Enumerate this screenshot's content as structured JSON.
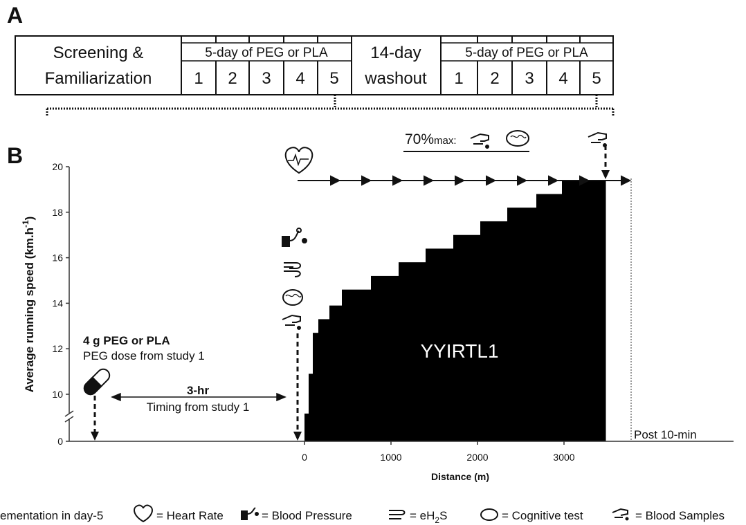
{
  "panel_a": {
    "label": "A",
    "screening": [
      "Screening &",
      "Familiarization"
    ],
    "block1": {
      "title": "5-day of PEG or PLA",
      "days": [
        "1",
        "2",
        "3",
        "4",
        "5"
      ]
    },
    "washout": [
      "14-day",
      "washout"
    ],
    "block2": {
      "title": "5-day of PEG or PLA",
      "days": [
        "1",
        "2",
        "3",
        "4",
        "5"
      ]
    }
  },
  "panel_b": {
    "label": "B",
    "y_axis_title": [
      "Average running speed (km.h",
      "-1",
      ")"
    ],
    "x_axis_title": "Distance (m)",
    "ylim": [
      0,
      20
    ],
    "yticks": [
      0,
      10,
      12,
      14,
      16,
      18,
      20
    ],
    "xlim": [
      -2720,
      4960
    ],
    "xticks": [
      0,
      1000,
      2000,
      3000
    ],
    "steps": {
      "edges": [
        0,
        48,
        96,
        160,
        288,
        432,
        768,
        1088,
        1400,
        1720,
        2032,
        2344,
        2680,
        2976,
        3480
      ],
      "speeds": [
        5.9,
        10.9,
        12.7,
        13.3,
        13.9,
        14.6,
        15.2,
        15.8,
        16.4,
        17.0,
        17.6,
        18.2,
        18.8,
        19.4
      ]
    },
    "test_label": "YYIRTL1",
    "dose": {
      "title": "4 g PEG or PLA",
      "note": "PEG dose from study 1"
    },
    "timing": {
      "title": "3-hr",
      "note": "Timing from study 1"
    },
    "intensity": {
      "text": "70%",
      "sub": "max:"
    },
    "post": "Post 10-min"
  },
  "legend": {
    "supplementation": "ementation in day-5",
    "heart_rate": "= Heart Rate",
    "blood_pressure": "= Blood Pressure",
    "eh2s": [
      "= eH",
      "2",
      "S"
    ],
    "cognitive": "= Cognitive test",
    "blood_samples": "= Blood Samples"
  }
}
